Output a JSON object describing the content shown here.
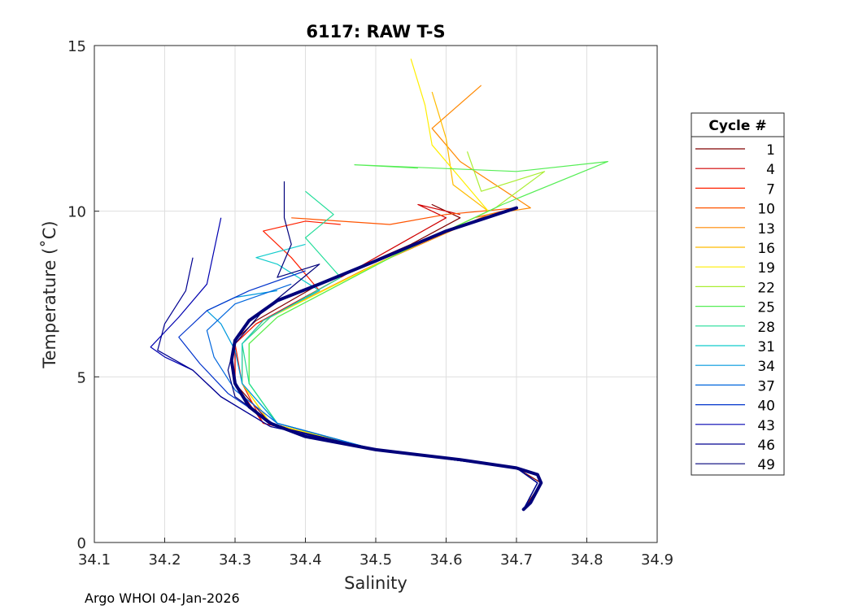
{
  "chart_data": {
    "type": "line",
    "title": "6117: RAW T-S",
    "xlabel": "Salinity",
    "ylabel": "Temperature (˚C)",
    "xlim": [
      34.1,
      34.9
    ],
    "ylim": [
      0,
      15
    ],
    "xticks": [
      "34.1",
      "34.2",
      "34.3",
      "34.4",
      "34.5",
      "34.6",
      "34.7",
      "34.8",
      "34.9"
    ],
    "yticks": [
      "0",
      "5",
      "10",
      "15"
    ],
    "grid": true,
    "legend": {
      "title": "Cycle #",
      "placement": "outside-right",
      "entries": [
        "1",
        "4",
        "7",
        "10",
        "13",
        "16",
        "19",
        "22",
        "25",
        "28",
        "31",
        "34",
        "37",
        "40",
        "43",
        "46",
        "49"
      ],
      "colors": [
        "#800000",
        "#d00000",
        "#ff2000",
        "#ff5500",
        "#ff8800",
        "#ffbb00",
        "#ffee00",
        "#aaee33",
        "#55ee55",
        "#22dd99",
        "#11cccc",
        "#0099dd",
        "#0066dd",
        "#0033cc",
        "#0000b0",
        "#000090",
        "#00007a"
      ]
    },
    "common_profile": {
      "salinity": [
        34.71,
        34.72,
        34.735,
        34.73,
        34.7,
        34.62,
        34.5,
        34.4,
        34.35,
        34.32,
        34.3,
        34.295,
        34.3,
        34.32,
        34.36,
        34.42,
        34.5,
        34.6,
        34.7
      ],
      "temperature": [
        1.0,
        1.2,
        1.8,
        2.05,
        2.25,
        2.5,
        2.8,
        3.2,
        3.6,
        4.1,
        4.8,
        5.5,
        6.1,
        6.7,
        7.3,
        7.8,
        8.5,
        9.4,
        10.1
      ]
    },
    "series": [
      {
        "name": "1",
        "salinity": [
          34.71,
          34.735,
          34.7,
          34.5,
          34.35,
          34.3,
          34.3,
          34.33,
          34.42,
          34.55,
          34.62,
          34.58,
          34.6
        ],
        "temperature": [
          1.0,
          1.8,
          2.25,
          2.8,
          3.6,
          4.8,
          6.1,
          6.7,
          7.8,
          9.0,
          9.8,
          10.2,
          10.0
        ]
      },
      {
        "name": "4",
        "salinity": [
          34.71,
          34.73,
          34.7,
          34.5,
          34.34,
          34.3,
          34.3,
          34.33,
          34.45,
          34.6,
          34.56,
          34.62
        ],
        "temperature": [
          1.0,
          1.8,
          2.25,
          2.8,
          3.6,
          4.8,
          6.0,
          6.6,
          8.0,
          9.8,
          10.2,
          9.9
        ]
      },
      {
        "name": "7",
        "salinity": [
          34.71,
          34.73,
          34.7,
          34.5,
          34.34,
          34.31,
          34.3,
          34.33,
          34.42,
          34.38,
          34.34,
          34.4,
          34.45
        ],
        "temperature": [
          1.0,
          1.8,
          2.25,
          2.8,
          3.6,
          4.8,
          6.0,
          6.6,
          7.6,
          8.6,
          9.4,
          9.7,
          9.6
        ]
      },
      {
        "name": "10",
        "salinity": [
          34.71,
          34.73,
          34.7,
          34.5,
          34.35,
          34.31,
          34.31,
          34.34,
          34.48,
          34.64,
          34.7,
          34.6,
          34.52,
          34.38
        ],
        "temperature": [
          1.0,
          1.8,
          2.25,
          2.8,
          3.6,
          4.8,
          6.0,
          6.7,
          8.2,
          9.8,
          10.1,
          9.9,
          9.6,
          9.8
        ]
      },
      {
        "name": "13",
        "salinity": [
          34.71,
          34.73,
          34.7,
          34.5,
          34.35,
          34.31,
          34.31,
          34.34,
          34.5,
          34.66,
          34.72,
          34.62,
          34.58,
          34.65
        ],
        "temperature": [
          1.0,
          1.8,
          2.25,
          2.8,
          3.6,
          4.8,
          6.0,
          6.7,
          8.4,
          9.9,
          10.1,
          11.5,
          12.5,
          13.8
        ]
      },
      {
        "name": "16",
        "salinity": [
          34.71,
          34.73,
          34.7,
          34.5,
          34.35,
          34.31,
          34.31,
          34.35,
          34.52,
          34.66,
          34.61,
          34.6,
          34.58
        ],
        "temperature": [
          1.0,
          1.8,
          2.25,
          2.8,
          3.6,
          4.8,
          6.0,
          6.8,
          8.6,
          10.0,
          10.8,
          12.2,
          13.6
        ]
      },
      {
        "name": "19",
        "salinity": [
          34.71,
          34.73,
          34.7,
          34.5,
          34.35,
          34.31,
          34.31,
          34.35,
          34.52,
          34.66,
          34.62,
          34.58,
          34.57,
          34.55
        ],
        "temperature": [
          1.0,
          1.8,
          2.25,
          2.8,
          3.6,
          4.8,
          6.0,
          6.8,
          8.6,
          10.0,
          11.0,
          12.0,
          13.2,
          14.6
        ]
      },
      {
        "name": "22",
        "salinity": [
          34.71,
          34.73,
          34.7,
          34.5,
          34.36,
          34.32,
          34.32,
          34.36,
          34.53,
          34.67,
          34.74,
          34.65,
          34.63
        ],
        "temperature": [
          1.0,
          1.8,
          2.25,
          2.8,
          3.6,
          4.8,
          6.0,
          6.8,
          8.7,
          10.1,
          11.2,
          10.6,
          11.8
        ]
      },
      {
        "name": "25",
        "salinity": [
          34.71,
          34.73,
          34.7,
          34.5,
          34.36,
          34.32,
          34.32,
          34.36,
          34.53,
          34.68,
          34.83,
          34.7,
          34.47,
          34.56
        ],
        "temperature": [
          1.0,
          1.8,
          2.25,
          2.8,
          3.6,
          4.8,
          6.0,
          6.8,
          8.7,
          10.2,
          11.5,
          11.2,
          11.4,
          11.3
        ]
      },
      {
        "name": "28",
        "salinity": [
          34.71,
          34.73,
          34.7,
          34.5,
          34.36,
          34.32,
          34.31,
          34.35,
          34.45,
          34.4,
          34.44,
          34.4
        ],
        "temperature": [
          1.0,
          1.8,
          2.25,
          2.8,
          3.6,
          4.8,
          6.0,
          6.8,
          8.0,
          9.2,
          9.9,
          10.6
        ]
      },
      {
        "name": "31",
        "salinity": [
          34.71,
          34.73,
          34.7,
          34.5,
          34.36,
          34.31,
          34.31,
          34.34,
          34.42,
          34.36,
          34.33,
          34.4
        ],
        "temperature": [
          1.0,
          1.8,
          2.25,
          2.8,
          3.6,
          4.8,
          6.0,
          6.7,
          7.6,
          8.4,
          8.6,
          9.0
        ]
      },
      {
        "name": "34",
        "salinity": [
          34.71,
          34.73,
          34.7,
          34.5,
          34.36,
          34.31,
          34.3,
          34.28,
          34.26,
          34.3,
          34.36
        ],
        "temperature": [
          1.0,
          1.8,
          2.25,
          2.8,
          3.6,
          4.8,
          5.8,
          6.6,
          7.0,
          7.4,
          7.6
        ]
      },
      {
        "name": "37",
        "salinity": [
          34.71,
          34.73,
          34.7,
          34.5,
          34.36,
          34.3,
          34.27,
          34.26,
          34.3,
          34.38
        ],
        "temperature": [
          1.0,
          1.8,
          2.25,
          2.8,
          3.6,
          4.6,
          5.6,
          6.4,
          7.2,
          7.8
        ]
      },
      {
        "name": "40",
        "salinity": [
          34.71,
          34.73,
          34.7,
          34.5,
          34.36,
          34.29,
          34.25,
          34.22,
          34.26,
          34.32,
          34.4
        ],
        "temperature": [
          1.0,
          1.8,
          2.25,
          2.8,
          3.5,
          4.5,
          5.4,
          6.2,
          7.0,
          7.6,
          8.2
        ]
      },
      {
        "name": "43",
        "salinity": [
          34.71,
          34.73,
          34.7,
          34.5,
          34.35,
          34.28,
          34.24,
          34.2,
          34.18,
          34.22,
          34.26,
          34.28
        ],
        "temperature": [
          1.0,
          1.8,
          2.25,
          2.8,
          3.5,
          4.4,
          5.2,
          5.6,
          5.9,
          6.8,
          7.8,
          9.8
        ]
      },
      {
        "name": "46",
        "salinity": [
          34.71,
          34.73,
          34.7,
          34.5,
          34.35,
          34.28,
          34.24,
          34.19,
          34.2,
          34.23,
          34.24
        ],
        "temperature": [
          1.0,
          1.8,
          2.25,
          2.8,
          3.5,
          4.4,
          5.2,
          5.8,
          6.6,
          7.6,
          8.6
        ]
      },
      {
        "name": "49",
        "salinity": [
          34.71,
          34.72,
          34.735,
          34.73,
          34.7,
          34.5,
          34.36,
          34.3,
          34.29,
          34.3,
          34.34,
          34.42,
          34.36,
          34.38,
          34.37,
          34.37
        ],
        "temperature": [
          1.0,
          1.2,
          1.8,
          2.05,
          2.25,
          2.8,
          3.5,
          4.4,
          5.2,
          6.0,
          7.0,
          8.4,
          8.0,
          9.0,
          9.8,
          10.9
        ]
      }
    ],
    "footer": "Argo WHOI 04-Jan-2026"
  }
}
